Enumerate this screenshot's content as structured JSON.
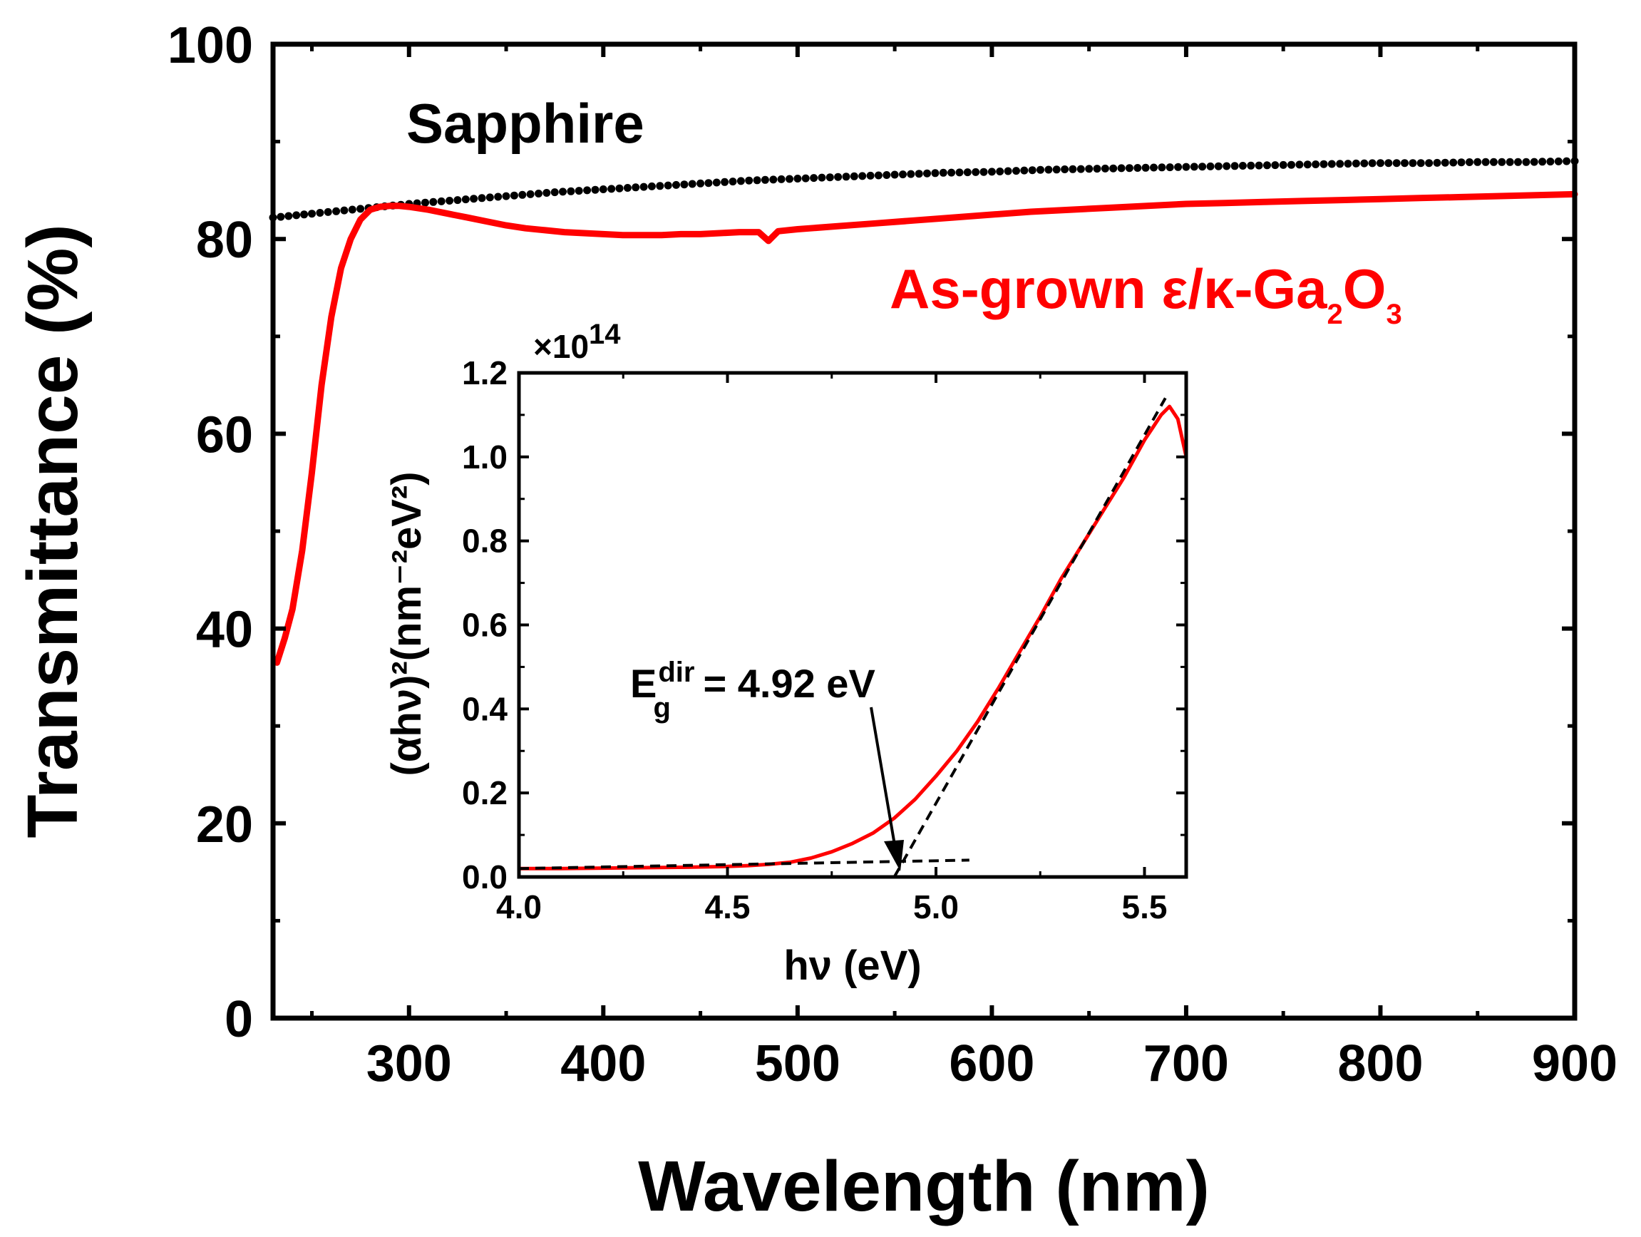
{
  "chart_data": [
    {
      "type": "line",
      "title": "",
      "xlabel": "Wavelength (nm)",
      "ylabel": "Transmittance (%)",
      "xlim": [
        230,
        900
      ],
      "ylim": [
        0,
        100
      ],
      "x_ticks": [
        300,
        400,
        500,
        600,
        700,
        800,
        900
      ],
      "y_ticks": [
        0,
        20,
        40,
        60,
        80,
        100
      ],
      "x_tick_labels": [
        "300",
        "400",
        "500",
        "600",
        "700",
        "800",
        "900"
      ],
      "y_tick_labels": [
        "0",
        "20",
        "40",
        "60",
        "80",
        "100"
      ],
      "legend_texts": {
        "sapphire": "Sapphire",
        "ga2o3_prefix": "As-grown ε/κ-Ga",
        "ga2o3_sub1": "2",
        "ga2o3_mid": "O",
        "ga2o3_sub2": "3"
      },
      "series": [
        {
          "name": "Sapphire",
          "color": "#000000",
          "style": "dots",
          "x": [
            230,
            250,
            275,
            300,
            325,
            350,
            375,
            400,
            425,
            450,
            475,
            500,
            525,
            550,
            575,
            600,
            625,
            650,
            675,
            700,
            725,
            750,
            775,
            800,
            825,
            850,
            875,
            900
          ],
          "y": [
            82.2,
            82.6,
            83.1,
            83.6,
            84.0,
            84.4,
            84.8,
            85.1,
            85.4,
            85.7,
            86.0,
            86.2,
            86.4,
            86.6,
            86.8,
            86.9,
            87.1,
            87.2,
            87.3,
            87.4,
            87.5,
            87.6,
            87.7,
            87.8,
            87.8,
            87.9,
            87.9,
            88.0
          ]
        },
        {
          "name": "As-grown ε/κ-Ga2O3",
          "color": "#ff0000",
          "style": "line",
          "x": [
            232,
            236,
            240,
            245,
            250,
            255,
            260,
            265,
            270,
            275,
            280,
            285,
            290,
            295,
            300,
            310,
            320,
            330,
            340,
            350,
            360,
            370,
            380,
            390,
            400,
            410,
            420,
            430,
            440,
            450,
            460,
            470,
            480,
            485,
            490,
            500,
            520,
            540,
            560,
            580,
            600,
            620,
            640,
            660,
            680,
            700,
            720,
            740,
            760,
            780,
            800,
            820,
            840,
            860,
            880,
            900
          ],
          "y": [
            36.5,
            39,
            42,
            48,
            56,
            65,
            72,
            77,
            80,
            82,
            83,
            83.3,
            83.4,
            83.4,
            83.3,
            83,
            82.6,
            82.2,
            81.8,
            81.4,
            81.1,
            80.9,
            80.7,
            80.6,
            80.5,
            80.4,
            80.4,
            80.4,
            80.5,
            80.5,
            80.6,
            80.7,
            80.7,
            79.8,
            80.8,
            81.0,
            81.3,
            81.6,
            81.9,
            82.2,
            82.5,
            82.8,
            83.0,
            83.2,
            83.4,
            83.6,
            83.7,
            83.8,
            83.9,
            84.0,
            84.1,
            84.2,
            84.3,
            84.4,
            84.5,
            84.6
          ]
        }
      ]
    },
    {
      "type": "line",
      "title": "",
      "xlabel": "hν (eV)",
      "ylabel": "(αhν)²(nm⁻²eV²)",
      "y_multiplier": "×10",
      "y_multiplier_exp": "14",
      "xlim": [
        4.0,
        5.6
      ],
      "ylim": [
        0,
        1.2
      ],
      "x_ticks": [
        4.0,
        4.5,
        5.0,
        5.5
      ],
      "y_ticks": [
        0.0,
        0.2,
        0.4,
        0.6,
        0.8,
        1.0,
        1.2
      ],
      "x_tick_labels": [
        "4.0",
        "4.5",
        "5.0",
        "5.5"
      ],
      "y_tick_labels": [
        "0.0",
        "0.2",
        "0.4",
        "0.6",
        "0.8",
        "1.0",
        "1.2"
      ],
      "annotation": {
        "label_E": "E",
        "label_sup": "dir",
        "label_sub": "g",
        "label_rest": " = 4.92 eV",
        "value_eV": 4.92
      },
      "series": [
        {
          "name": "(αhν)² data",
          "color": "#ff0000",
          "style": "line",
          "x": [
            4.0,
            4.1,
            4.2,
            4.3,
            4.4,
            4.5,
            4.55,
            4.6,
            4.65,
            4.7,
            4.75,
            4.8,
            4.85,
            4.9,
            4.95,
            5.0,
            5.05,
            5.1,
            5.15,
            5.2,
            5.25,
            5.3,
            5.35,
            5.4,
            5.45,
            5.5,
            5.52,
            5.54,
            5.56,
            5.58,
            5.6
          ],
          "y": [
            0.02,
            0.02,
            0.021,
            0.022,
            0.023,
            0.025,
            0.027,
            0.03,
            0.035,
            0.045,
            0.06,
            0.08,
            0.105,
            0.14,
            0.185,
            0.24,
            0.3,
            0.37,
            0.45,
            0.535,
            0.62,
            0.71,
            0.79,
            0.87,
            0.95,
            1.04,
            1.07,
            1.1,
            1.12,
            1.09,
            1.0
          ]
        },
        {
          "name": "Linear fit",
          "color": "#000000",
          "style": "dashed",
          "x": [
            4.9,
            5.55
          ],
          "y": [
            0.0,
            1.14
          ]
        },
        {
          "name": "Baseline",
          "color": "#000000",
          "style": "dashed",
          "x": [
            4.0,
            5.08
          ],
          "y": [
            0.02,
            0.04
          ]
        }
      ]
    }
  ]
}
